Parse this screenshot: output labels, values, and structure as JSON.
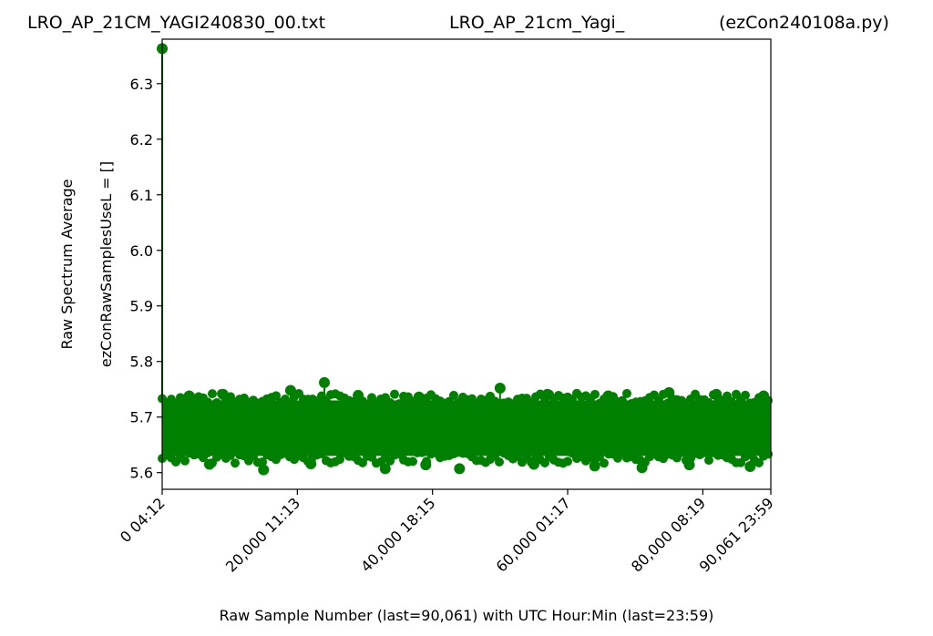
{
  "header": {
    "title_left": "LRO_AP_21CM_YAGI240830_00.txt",
    "title_center": "LRO_AP_21cm_Yagi_",
    "title_right": "(ezCon240108a.py)"
  },
  "chart_data": {
    "type": "scatter",
    "xlabel": "Raw Sample Number (last=90,061) with UTC Hour:Min (last=23:59)",
    "ylabel_line1": "Raw Spectrum Average",
    "ylabel_line2": "ezConRawSamplesUseL = []",
    "xlim": [
      0,
      90061
    ],
    "ylim": [
      5.57,
      6.38
    ],
    "grid": false,
    "color": "#008000",
    "x_ticks": [
      {
        "value": 0,
        "label": "0  04:12"
      },
      {
        "value": 20000,
        "label": "20,000  11:13"
      },
      {
        "value": 40000,
        "label": "40,000  18:15"
      },
      {
        "value": 60000,
        "label": "60,000  01:17"
      },
      {
        "value": 80000,
        "label": "80,000  08:19"
      },
      {
        "value": 90061,
        "label": "90,061  23:59"
      }
    ],
    "y_ticks": [
      {
        "value": 5.6,
        "label": "5.6"
      },
      {
        "value": 5.7,
        "label": "5.7"
      },
      {
        "value": 5.8,
        "label": "5.8"
      },
      {
        "value": 5.9,
        "label": "5.9"
      },
      {
        "value": 6.0,
        "label": "6.0"
      },
      {
        "value": 6.1,
        "label": "6.1"
      },
      {
        "value": 6.2,
        "label": "6.2"
      },
      {
        "value": 6.3,
        "label": "6.3"
      }
    ],
    "band": {
      "x_start": 0,
      "x_end": 90061,
      "y_low": 5.63,
      "y_high": 5.73
    },
    "points": [
      {
        "x": 0,
        "y": 6.363
      },
      {
        "x": 15000,
        "y": 5.605
      },
      {
        "x": 24000,
        "y": 5.762
      },
      {
        "x": 33000,
        "y": 5.607
      },
      {
        "x": 44000,
        "y": 5.607
      },
      {
        "x": 50000,
        "y": 5.752
      },
      {
        "x": 64000,
        "y": 5.612
      },
      {
        "x": 71000,
        "y": 5.609
      },
      {
        "x": 87000,
        "y": 5.611
      },
      {
        "x": 4000,
        "y": 5.738
      },
      {
        "x": 9000,
        "y": 5.741
      },
      {
        "x": 19000,
        "y": 5.748
      },
      {
        "x": 29000,
        "y": 5.739
      },
      {
        "x": 38000,
        "y": 5.736
      },
      {
        "x": 57000,
        "y": 5.741
      },
      {
        "x": 66000,
        "y": 5.738
      },
      {
        "x": 75000,
        "y": 5.744
      },
      {
        "x": 82000,
        "y": 5.741
      },
      {
        "x": 89000,
        "y": 5.738
      },
      {
        "x": 7000,
        "y": 5.615
      },
      {
        "x": 22000,
        "y": 5.616
      },
      {
        "x": 39000,
        "y": 5.614
      },
      {
        "x": 55000,
        "y": 5.615
      },
      {
        "x": 78000,
        "y": 5.614
      }
    ]
  }
}
